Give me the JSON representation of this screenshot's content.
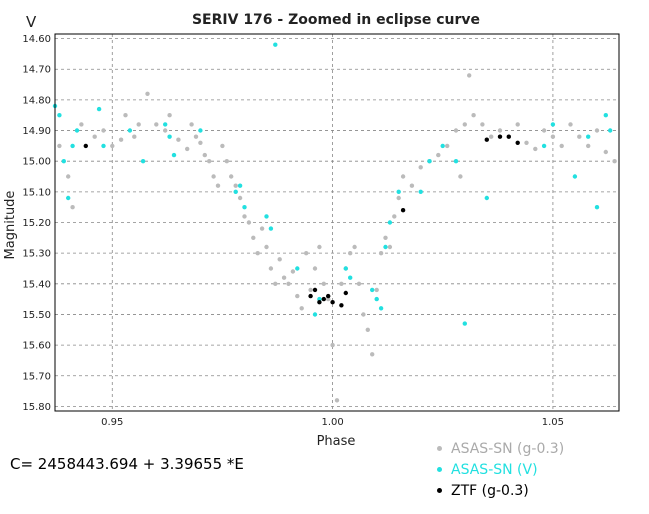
{
  "chart_data": {
    "type": "scatter",
    "title": "SERIV 176 - Zoomed in eclipse curve",
    "xlabel": "Phase",
    "ylabel": "Magnitude",
    "corner_label": "V",
    "xlim": [
      0.937,
      1.065
    ],
    "ylim": [
      15.815,
      14.585
    ],
    "y_inverted": true,
    "grid": true,
    "x_ticks": [
      "0.95",
      "1.00",
      "1.05"
    ],
    "x_tick_values": [
      0.95,
      1.0,
      1.05
    ],
    "y_ticks": [
      "14.60",
      "14.70",
      "14.80",
      "14.90",
      "15.00",
      "15.10",
      "15.20",
      "15.30",
      "15.40",
      "15.50",
      "15.60",
      "15.70",
      "15.80"
    ],
    "y_tick_values": [
      14.6,
      14.7,
      14.8,
      14.9,
      15.0,
      15.1,
      15.2,
      15.3,
      15.4,
      15.5,
      15.6,
      15.7,
      15.8
    ],
    "legend_position": "bottom-right, outside plot",
    "series": [
      {
        "name": "ASAS-SN (g-0.3)",
        "color": "#bbbbbb",
        "points": [
          [
            0.938,
            14.95
          ],
          [
            0.94,
            15.05
          ],
          [
            0.941,
            15.15
          ],
          [
            0.943,
            14.88
          ],
          [
            0.946,
            14.92
          ],
          [
            0.948,
            14.9
          ],
          [
            0.95,
            14.95
          ],
          [
            0.952,
            14.93
          ],
          [
            0.953,
            14.85
          ],
          [
            0.955,
            14.92
          ],
          [
            0.956,
            14.88
          ],
          [
            0.958,
            14.78
          ],
          [
            0.96,
            14.88
          ],
          [
            0.962,
            14.9
          ],
          [
            0.963,
            14.85
          ],
          [
            0.965,
            14.93
          ],
          [
            0.967,
            14.96
          ],
          [
            0.968,
            14.88
          ],
          [
            0.969,
            14.92
          ],
          [
            0.97,
            14.94
          ],
          [
            0.971,
            14.98
          ],
          [
            0.972,
            15.0
          ],
          [
            0.973,
            15.05
          ],
          [
            0.974,
            15.08
          ],
          [
            0.975,
            14.95
          ],
          [
            0.976,
            15.0
          ],
          [
            0.977,
            15.05
          ],
          [
            0.978,
            15.08
          ],
          [
            0.979,
            15.12
          ],
          [
            0.98,
            15.18
          ],
          [
            0.981,
            15.2
          ],
          [
            0.982,
            15.25
          ],
          [
            0.983,
            15.3
          ],
          [
            0.984,
            15.22
          ],
          [
            0.985,
            15.28
          ],
          [
            0.986,
            15.35
          ],
          [
            0.987,
            15.4
          ],
          [
            0.988,
            15.32
          ],
          [
            0.989,
            15.38
          ],
          [
            0.99,
            15.4
          ],
          [
            0.991,
            15.36
          ],
          [
            0.992,
            15.44
          ],
          [
            0.993,
            15.48
          ],
          [
            0.994,
            15.3
          ],
          [
            0.995,
            15.42
          ],
          [
            0.996,
            15.35
          ],
          [
            0.997,
            15.28
          ],
          [
            0.998,
            15.4
          ],
          [
            0.999,
            15.45
          ],
          [
            1.0,
            15.6
          ],
          [
            1.001,
            15.78
          ],
          [
            1.002,
            15.4
          ],
          [
            1.003,
            15.35
          ],
          [
            1.004,
            15.3
          ],
          [
            1.005,
            15.28
          ],
          [
            1.006,
            15.4
          ],
          [
            1.007,
            15.5
          ],
          [
            1.008,
            15.55
          ],
          [
            1.009,
            15.63
          ],
          [
            1.01,
            15.42
          ],
          [
            1.011,
            15.3
          ],
          [
            1.012,
            15.25
          ],
          [
            1.013,
            15.28
          ],
          [
            1.014,
            15.18
          ],
          [
            1.015,
            15.12
          ],
          [
            1.016,
            15.05
          ],
          [
            1.018,
            15.08
          ],
          [
            1.02,
            15.02
          ],
          [
            1.022,
            15.0
          ],
          [
            1.024,
            14.98
          ],
          [
            1.026,
            14.95
          ],
          [
            1.028,
            14.9
          ],
          [
            1.029,
            15.05
          ],
          [
            1.03,
            14.88
          ],
          [
            1.031,
            14.72
          ],
          [
            1.032,
            14.85
          ],
          [
            1.034,
            14.88
          ],
          [
            1.036,
            14.92
          ],
          [
            1.038,
            14.9
          ],
          [
            1.04,
            14.92
          ],
          [
            1.042,
            14.88
          ],
          [
            1.044,
            14.94
          ],
          [
            1.046,
            14.96
          ],
          [
            1.048,
            14.9
          ],
          [
            1.05,
            14.92
          ],
          [
            1.052,
            14.95
          ],
          [
            1.054,
            14.88
          ],
          [
            1.056,
            14.92
          ],
          [
            1.058,
            14.95
          ],
          [
            1.06,
            14.9
          ],
          [
            1.062,
            14.97
          ],
          [
            1.064,
            15.0
          ]
        ]
      },
      {
        "name": "ASAS-SN (V)",
        "color": "#22e0e0",
        "points": [
          [
            0.937,
            14.82
          ],
          [
            0.938,
            14.85
          ],
          [
            0.939,
            15.0
          ],
          [
            0.94,
            15.12
          ],
          [
            0.941,
            14.95
          ],
          [
            0.942,
            14.9
          ],
          [
            0.947,
            14.83
          ],
          [
            0.948,
            14.95
          ],
          [
            0.954,
            14.9
          ],
          [
            0.957,
            15.0
          ],
          [
            0.962,
            14.88
          ],
          [
            0.963,
            14.92
          ],
          [
            0.964,
            14.98
          ],
          [
            0.97,
            14.9
          ],
          [
            0.978,
            15.1
          ],
          [
            0.979,
            15.08
          ],
          [
            0.98,
            15.15
          ],
          [
            0.985,
            15.18
          ],
          [
            0.986,
            15.22
          ],
          [
            0.987,
            14.62
          ],
          [
            0.992,
            15.35
          ],
          [
            0.996,
            15.5
          ],
          [
            0.997,
            15.45
          ],
          [
            1.003,
            15.35
          ],
          [
            1.004,
            15.38
          ],
          [
            1.009,
            15.42
          ],
          [
            1.01,
            15.45
          ],
          [
            1.011,
            15.48
          ],
          [
            1.012,
            15.28
          ],
          [
            1.013,
            15.2
          ],
          [
            1.015,
            15.1
          ],
          [
            1.02,
            15.1
          ],
          [
            1.022,
            15.0
          ],
          [
            1.025,
            14.95
          ],
          [
            1.028,
            15.0
          ],
          [
            1.03,
            15.53
          ],
          [
            1.035,
            15.12
          ],
          [
            1.048,
            14.95
          ],
          [
            1.05,
            14.88
          ],
          [
            1.055,
            15.05
          ],
          [
            1.058,
            14.92
          ],
          [
            1.06,
            15.15
          ],
          [
            1.062,
            14.85
          ],
          [
            1.063,
            14.9
          ]
        ]
      },
      {
        "name": "ZTF (g-0.3)",
        "color": "#000000",
        "points": [
          [
            0.944,
            14.95
          ],
          [
            0.995,
            15.44
          ],
          [
            0.996,
            15.42
          ],
          [
            0.997,
            15.46
          ],
          [
            0.998,
            15.45
          ],
          [
            0.999,
            15.44
          ],
          [
            1.0,
            15.46
          ],
          [
            1.002,
            15.47
          ],
          [
            1.003,
            15.43
          ],
          [
            1.016,
            15.16
          ],
          [
            1.035,
            14.93
          ],
          [
            1.038,
            14.92
          ],
          [
            1.04,
            14.92
          ],
          [
            1.042,
            14.94
          ]
        ]
      }
    ],
    "formula": "C= 2458443.694 + 3.39655 *E"
  }
}
